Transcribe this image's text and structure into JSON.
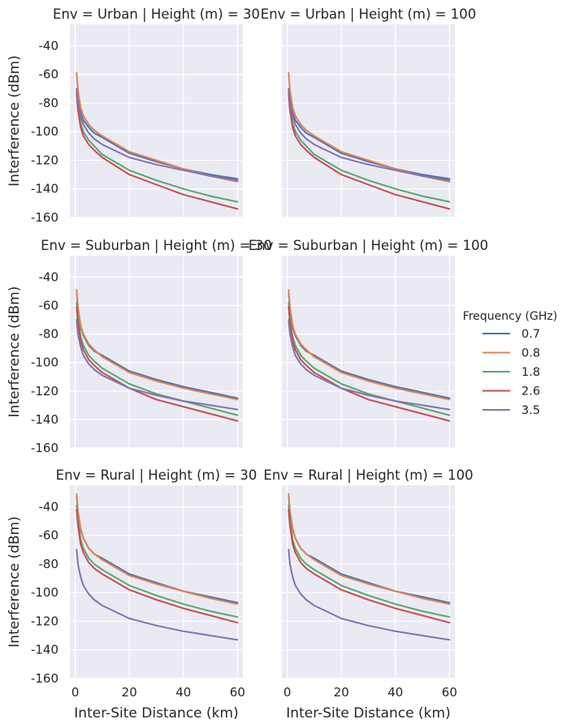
{
  "chart_data": {
    "type": "line",
    "layout": "facet-grid",
    "row_facet": "Env",
    "col_facet": "Height (m)",
    "xlabel": "Inter-Site Distance (km)",
    "ylabel": "Interference (dBm)",
    "xlim": [
      -2,
      62
    ],
    "ylim": [
      -160,
      -25
    ],
    "xticks": [
      0,
      20,
      40,
      60
    ],
    "yticks": [
      -40,
      -60,
      -80,
      -100,
      -120,
      -140,
      -160
    ],
    "grid": true,
    "x": [
      0.5,
      1,
      2,
      3,
      5,
      7,
      10,
      20,
      30,
      40,
      50,
      60
    ],
    "legend": {
      "title": "Frequency (GHz)",
      "placement": "right"
    },
    "series_colors": {
      "0.7": "#4c72b0",
      "0.8": "#dd8452",
      "1.8": "#55a868",
      "2.6": "#c44e52",
      "3.5": "#8172b3"
    },
    "panels": [
      {
        "title": "Env = Urban | Height (m) = 30",
        "series": [
          {
            "name": "0.7",
            "values": [
              -70,
              -78,
              -87,
              -92,
              -97,
              -101,
              -104,
              -115,
              -121,
              -126,
              -130,
              -133
            ]
          },
          {
            "name": "0.8",
            "values": [
              -59,
              -71,
              -83,
              -89,
              -95,
              -99,
              -103,
              -114,
              -120,
              -126,
              -131,
              -135
            ]
          },
          {
            "name": "1.8",
            "values": [
              -72,
              -82,
              -94,
              -100,
              -106,
              -110,
              -116,
              -127,
              -134,
              -140,
              -145,
              -149
            ]
          },
          {
            "name": "2.6",
            "values": [
              -74,
              -85,
              -97,
              -103,
              -109,
              -113,
              -118,
              -130,
              -137,
              -144,
              -149,
              -154
            ]
          },
          {
            "name": "3.5",
            "values": [
              -70,
              -80,
              -89,
              -95,
              -101,
              -105,
              -109,
              -118,
              -123,
              -127,
              -131,
              -134
            ]
          }
        ]
      },
      {
        "title": "Env = Urban | Height (m) = 100",
        "series": [
          {
            "name": "0.7",
            "values": [
              -70,
              -78,
              -87,
              -92,
              -97,
              -101,
              -104,
              -115,
              -121,
              -126,
              -130,
              -133
            ]
          },
          {
            "name": "0.8",
            "values": [
              -59,
              -71,
              -83,
              -89,
              -95,
              -99,
              -103,
              -114,
              -120,
              -126,
              -131,
              -135
            ]
          },
          {
            "name": "1.8",
            "values": [
              -72,
              -82,
              -94,
              -100,
              -106,
              -110,
              -116,
              -127,
              -134,
              -140,
              -145,
              -149
            ]
          },
          {
            "name": "2.6",
            "values": [
              -74,
              -85,
              -97,
              -103,
              -109,
              -113,
              -118,
              -130,
              -137,
              -144,
              -149,
              -154
            ]
          },
          {
            "name": "3.5",
            "values": [
              -70,
              -80,
              -89,
              -95,
              -101,
              -105,
              -109,
              -118,
              -123,
              -127,
              -131,
              -134
            ]
          }
        ]
      },
      {
        "title": "Env = Suburban | Height (m) = 30",
        "series": [
          {
            "name": "0.7",
            "values": [
              -51,
              -62,
              -75,
              -81,
              -88,
              -92,
              -95,
              -106,
              -112,
              -117,
              -121,
              -125
            ]
          },
          {
            "name": "0.8",
            "values": [
              -49,
              -61,
              -74,
              -80,
              -87,
              -91,
              -96,
              -107,
              -113,
              -118,
              -122,
              -126
            ]
          },
          {
            "name": "1.8",
            "values": [
              -58,
              -69,
              -82,
              -88,
              -95,
              -99,
              -104,
              -115,
              -122,
              -127,
              -132,
              -137
            ]
          },
          {
            "name": "2.6",
            "values": [
              -61,
              -72,
              -85,
              -91,
              -98,
              -102,
              -107,
              -118,
              -126,
              -131,
              -136,
              -141
            ]
          },
          {
            "name": "3.5",
            "values": [
              -70,
              -80,
              -89,
              -95,
              -101,
              -105,
              -109,
              -118,
              -123,
              -127,
              -130,
              -133
            ]
          }
        ]
      },
      {
        "title": "Env = Suburban | Height (m) = 100",
        "series": [
          {
            "name": "0.7",
            "values": [
              -51,
              -62,
              -75,
              -81,
              -88,
              -92,
              -95,
              -106,
              -112,
              -117,
              -121,
              -125
            ]
          },
          {
            "name": "0.8",
            "values": [
              -49,
              -61,
              -74,
              -80,
              -87,
              -91,
              -96,
              -107,
              -113,
              -118,
              -122,
              -126
            ]
          },
          {
            "name": "1.8",
            "values": [
              -58,
              -69,
              -82,
              -88,
              -95,
              -99,
              -104,
              -115,
              -122,
              -127,
              -132,
              -137
            ]
          },
          {
            "name": "2.6",
            "values": [
              -61,
              -72,
              -85,
              -91,
              -98,
              -102,
              -107,
              -118,
              -126,
              -131,
              -136,
              -141
            ]
          },
          {
            "name": "3.5",
            "values": [
              -70,
              -80,
              -89,
              -95,
              -101,
              -105,
              -109,
              -118,
              -123,
              -127,
              -130,
              -133
            ]
          }
        ]
      },
      {
        "title": "Env = Rural | Height (m) = 30",
        "series": [
          {
            "name": "0.7",
            "values": [
              -33,
              -44,
              -56,
              -62,
              -69,
              -73,
              -76,
              -87,
              -93,
              -99,
              -103,
              -107
            ]
          },
          {
            "name": "0.8",
            "values": [
              -31,
              -43,
              -55,
              -62,
              -69,
              -73,
              -77,
              -88,
              -94,
              -99,
              -104,
              -108
            ]
          },
          {
            "name": "1.8",
            "values": [
              -39,
              -50,
              -63,
              -69,
              -76,
              -80,
              -84,
              -95,
              -102,
              -108,
              -113,
              -117
            ]
          },
          {
            "name": "2.6",
            "values": [
              -42,
              -53,
              -66,
              -72,
              -79,
              -83,
              -87,
              -98,
              -105,
              -111,
              -116,
              -121
            ]
          },
          {
            "name": "3.5",
            "values": [
              -70,
              -80,
              -89,
              -95,
              -101,
              -105,
              -109,
              -118,
              -123,
              -127,
              -130,
              -133
            ]
          }
        ]
      },
      {
        "title": "Env = Rural | Height (m) = 100",
        "series": [
          {
            "name": "0.7",
            "values": [
              -33,
              -44,
              -56,
              -62,
              -69,
              -73,
              -76,
              -87,
              -93,
              -99,
              -103,
              -107
            ]
          },
          {
            "name": "0.8",
            "values": [
              -31,
              -43,
              -55,
              -62,
              -69,
              -73,
              -77,
              -88,
              -94,
              -99,
              -104,
              -108
            ]
          },
          {
            "name": "1.8",
            "values": [
              -39,
              -50,
              -63,
              -69,
              -76,
              -80,
              -84,
              -95,
              -102,
              -108,
              -113,
              -117
            ]
          },
          {
            "name": "2.6",
            "values": [
              -42,
              -53,
              -66,
              -72,
              -79,
              -83,
              -87,
              -98,
              -105,
              -111,
              -116,
              -121
            ]
          },
          {
            "name": "3.5",
            "values": [
              -70,
              -80,
              -89,
              -95,
              -101,
              -105,
              -109,
              -118,
              -123,
              -127,
              -130,
              -133
            ]
          }
        ]
      }
    ]
  }
}
